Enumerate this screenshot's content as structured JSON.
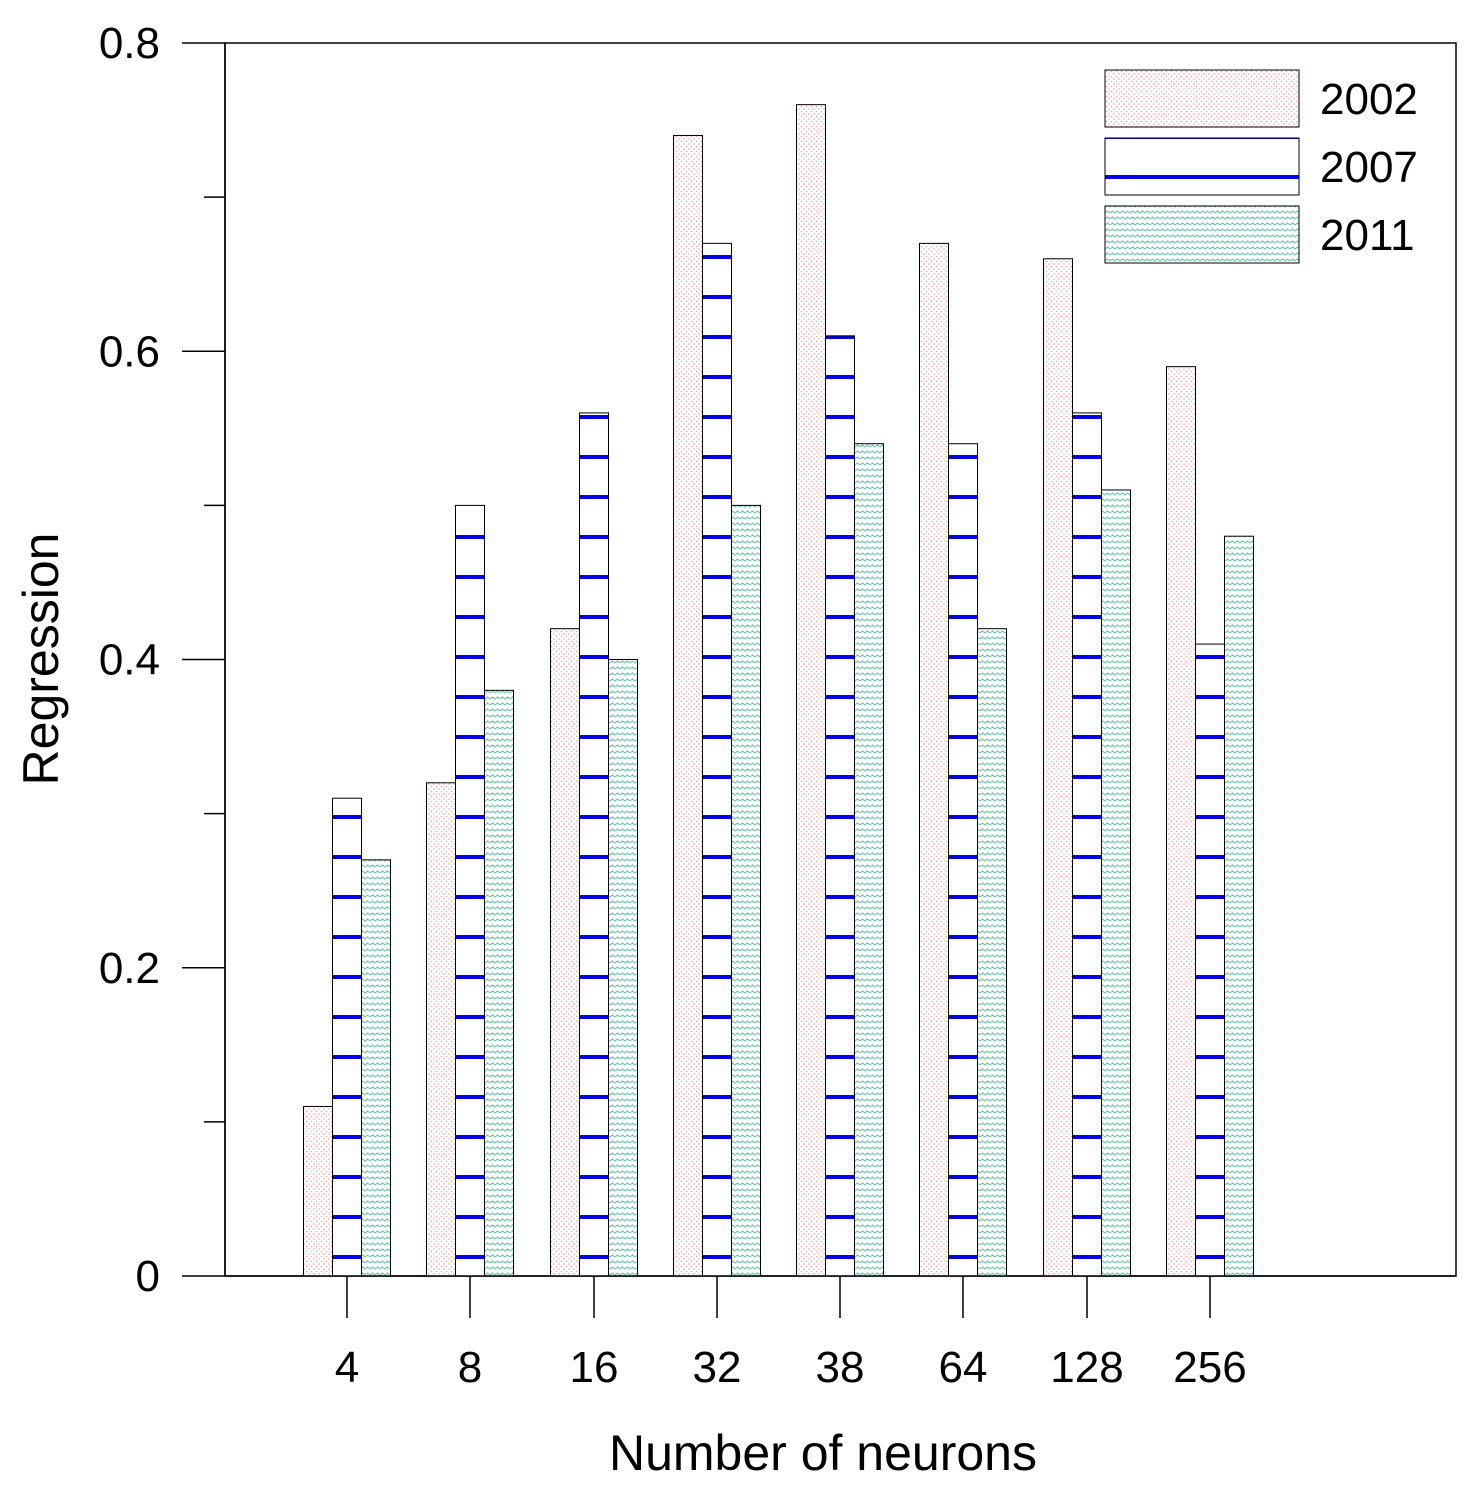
{
  "chart_data": {
    "type": "bar",
    "title": "",
    "xlabel": "Number of neurons",
    "ylabel": "Regression",
    "categories": [
      "4",
      "8",
      "16",
      "32",
      "38",
      "64",
      "128",
      "256"
    ],
    "series": [
      {
        "name": "2002",
        "values": [
          0.11,
          0.32,
          0.42,
          0.74,
          0.76,
          0.67,
          0.66,
          0.59
        ]
      },
      {
        "name": "2007",
        "values": [
          0.31,
          0.5,
          0.56,
          0.67,
          0.61,
          0.54,
          0.56,
          0.41
        ]
      },
      {
        "name": "2011",
        "values": [
          0.27,
          0.38,
          0.4,
          0.5,
          0.54,
          0.42,
          0.51,
          0.48
        ]
      }
    ],
    "ylim": [
      0,
      0.8
    ],
    "y_ticks": [
      0,
      0.2,
      0.4,
      0.6,
      0.8
    ],
    "y_tick_labels": [
      "0",
      "0.2",
      "0.4",
      "0.6",
      "0.8"
    ],
    "legend_position": "top-right",
    "grid": false,
    "colors": {
      "series_2002_dots": "#e8a0a8",
      "series_2007_lines": "#0000ee",
      "series_2011_waves": "#6cc8a8",
      "outline": "#000000"
    }
  }
}
